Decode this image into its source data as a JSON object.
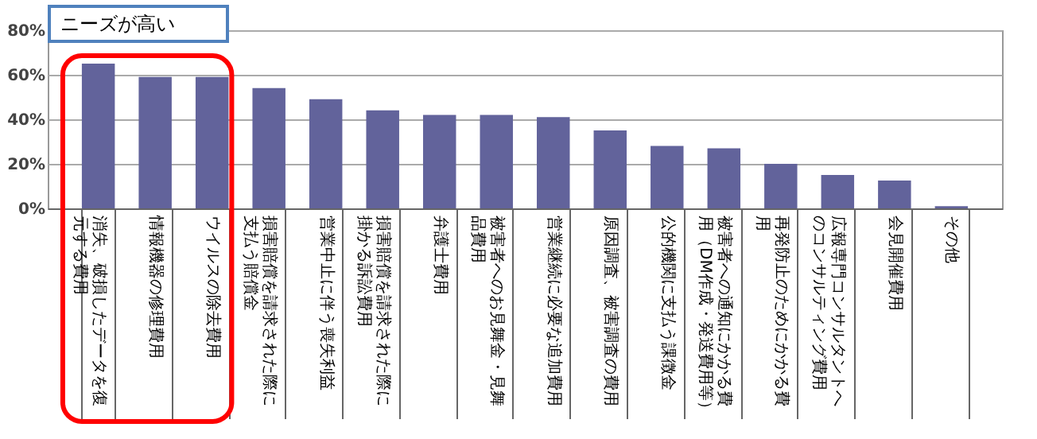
{
  "chart_data": {
    "type": "bar",
    "categories": [
      "消失、破損したデータを復元する費用",
      "情報機器の修理費用",
      "ウイルスの除去費用",
      "損害賠償を請求された際に支払う賠償金",
      "営業中止に伴う喪失利益",
      "損害賠償を請求された際に掛かる訴訟費用",
      "弁護士費用",
      "被害者へのお見舞金・見舞品費用",
      "営業継続に必要な追加費用",
      "原因調査、被害調査の費用",
      "公的機関に支払う課徴金",
      "被害者への通知にかかる費用（DM作成・発送費用等）",
      "再発防止のためにかかる費用",
      "広報専門コンサルタントへのコンサルティング費用",
      "会見開催費用",
      "その他"
    ],
    "values": [
      65,
      59,
      59,
      54,
      49,
      44,
      42,
      42,
      41,
      35,
      28,
      27,
      20,
      15,
      12.5,
      1
    ],
    "color": "#62639b",
    "ylim": [
      0,
      80
    ],
    "yticks": [
      {
        "value": 0,
        "label": "0%"
      },
      {
        "value": 20,
        "label": "20%"
      },
      {
        "value": 40,
        "label": "40%"
      },
      {
        "value": 60,
        "label": "60%"
      },
      {
        "value": 80,
        "label": "80%"
      }
    ],
    "grid": "y",
    "annotations": [
      "ニーズが高い"
    ]
  }
}
